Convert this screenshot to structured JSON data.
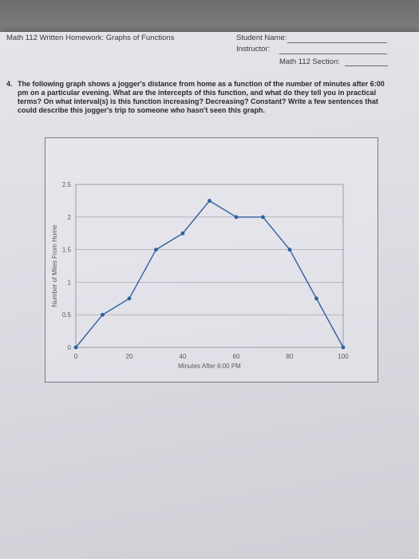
{
  "header": {
    "title": "Math 112 Written Homework: Graphs of Functions",
    "student_label": "Student Name:",
    "instructor_label": "Instructor:",
    "section_label": "Math 112 Section:"
  },
  "question": {
    "number": "4.",
    "text": "The following graph shows a jogger's distance from home as a function of the number of minutes after 6:00 pm on a particular evening. What are the intercepts of this function, and what do they tell you in practical terms? On what interval(s) is this function increasing? Decreasing? Constant? Write a few sentences that could describe this jogger's trip to someone who hasn't seen this graph."
  },
  "chart_data": {
    "type": "line",
    "title": "",
    "xlabel": "Minutes After 6:00 PM",
    "ylabel": "Number of Miles From Home",
    "xlim": [
      0,
      100
    ],
    "ylim": [
      0,
      2.5
    ],
    "x_ticks": [
      "0",
      "20",
      "40",
      "60",
      "80",
      "100"
    ],
    "y_ticks": [
      "0",
      "0.5",
      "1",
      "1.5",
      "2",
      "2.5"
    ],
    "grid": true,
    "legend": "none",
    "line_color": "#2e5f9e",
    "x": [
      0,
      10,
      20,
      30,
      40,
      50,
      60,
      70,
      80,
      90,
      100
    ],
    "y": [
      0,
      0.5,
      0.75,
      1.5,
      1.75,
      2.25,
      2,
      2,
      1.5,
      0.75,
      0
    ]
  }
}
